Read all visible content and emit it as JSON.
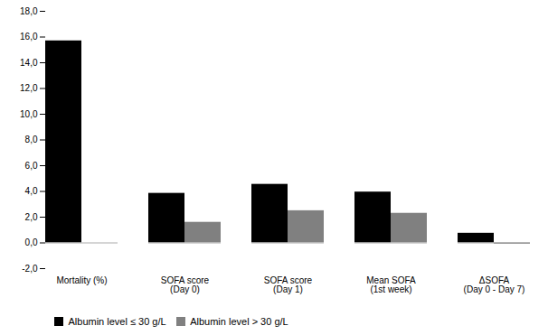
{
  "chart_data": {
    "type": "bar",
    "categories": [
      "Mortality (%)",
      "SOFA score\n(Day 0)",
      "SOFA score\n(Day 1)",
      "Mean SOFA\n(1st week)",
      "ΔSOFA\n(Day 0 - Day 7)"
    ],
    "series": [
      {
        "name": "Albumin level ≤ 30 g/L",
        "color": "#000000",
        "values": [
          15.7,
          3.85,
          4.55,
          3.95,
          0.75
        ]
      },
      {
        "name": "Albumin level > 30 g/L",
        "color": "#808080",
        "values": [
          0.0,
          1.6,
          2.5,
          2.3,
          -0.1
        ]
      }
    ],
    "ylim": [
      -2.0,
      18.0
    ],
    "yticks": [
      {
        "value": -2.0,
        "label": "-2,0"
      },
      {
        "value": 0.0,
        "label": "0,0"
      },
      {
        "value": 2.0,
        "label": "2,0"
      },
      {
        "value": 4.0,
        "label": "4,0"
      },
      {
        "value": 6.0,
        "label": "6,0"
      },
      {
        "value": 8.0,
        "label": "8,0"
      },
      {
        "value": 10.0,
        "label": "10,0"
      },
      {
        "value": 12.0,
        "label": "12,0"
      },
      {
        "value": 14.0,
        "label": "14,0"
      },
      {
        "value": 16.0,
        "label": "16,0"
      },
      {
        "value": 18.0,
        "label": "18,0"
      }
    ],
    "grid": false,
    "legend": "bottom"
  }
}
